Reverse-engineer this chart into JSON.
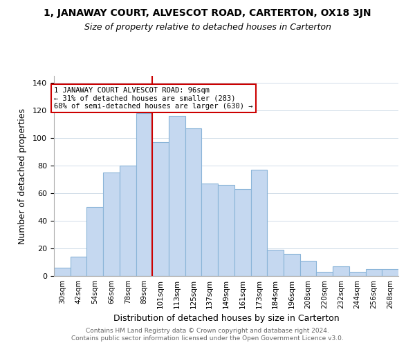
{
  "title": "1, JANAWAY COURT, ALVESCOT ROAD, CARTERTON, OX18 3JN",
  "subtitle": "Size of property relative to detached houses in Carterton",
  "xlabel": "Distribution of detached houses by size in Carterton",
  "ylabel": "Number of detached properties",
  "bar_labels": [
    "30sqm",
    "42sqm",
    "54sqm",
    "66sqm",
    "78sqm",
    "89sqm",
    "101sqm",
    "113sqm",
    "125sqm",
    "137sqm",
    "149sqm",
    "161sqm",
    "173sqm",
    "184sqm",
    "196sqm",
    "208sqm",
    "220sqm",
    "232sqm",
    "244sqm",
    "256sqm",
    "268sqm"
  ],
  "bar_heights": [
    6,
    14,
    50,
    75,
    80,
    118,
    97,
    116,
    107,
    67,
    66,
    63,
    77,
    19,
    16,
    11,
    3,
    7,
    3,
    5,
    5
  ],
  "bar_color": "#c5d8f0",
  "bar_edge_color": "#8ab4d8",
  "vline_x": 5.5,
  "vline_color": "#cc0000",
  "annotation_text": "1 JANAWAY COURT ALVESCOT ROAD: 96sqm\n← 31% of detached houses are smaller (283)\n68% of semi-detached houses are larger (630) →",
  "annotation_box_color": "#ffffff",
  "annotation_box_edge_color": "#cc0000",
  "ylim": [
    0,
    145
  ],
  "footer1": "Contains HM Land Registry data © Crown copyright and database right 2024.",
  "footer2": "Contains public sector information licensed under the Open Government Licence v3.0.",
  "background_color": "#ffffff",
  "grid_color": "#d0dce8"
}
